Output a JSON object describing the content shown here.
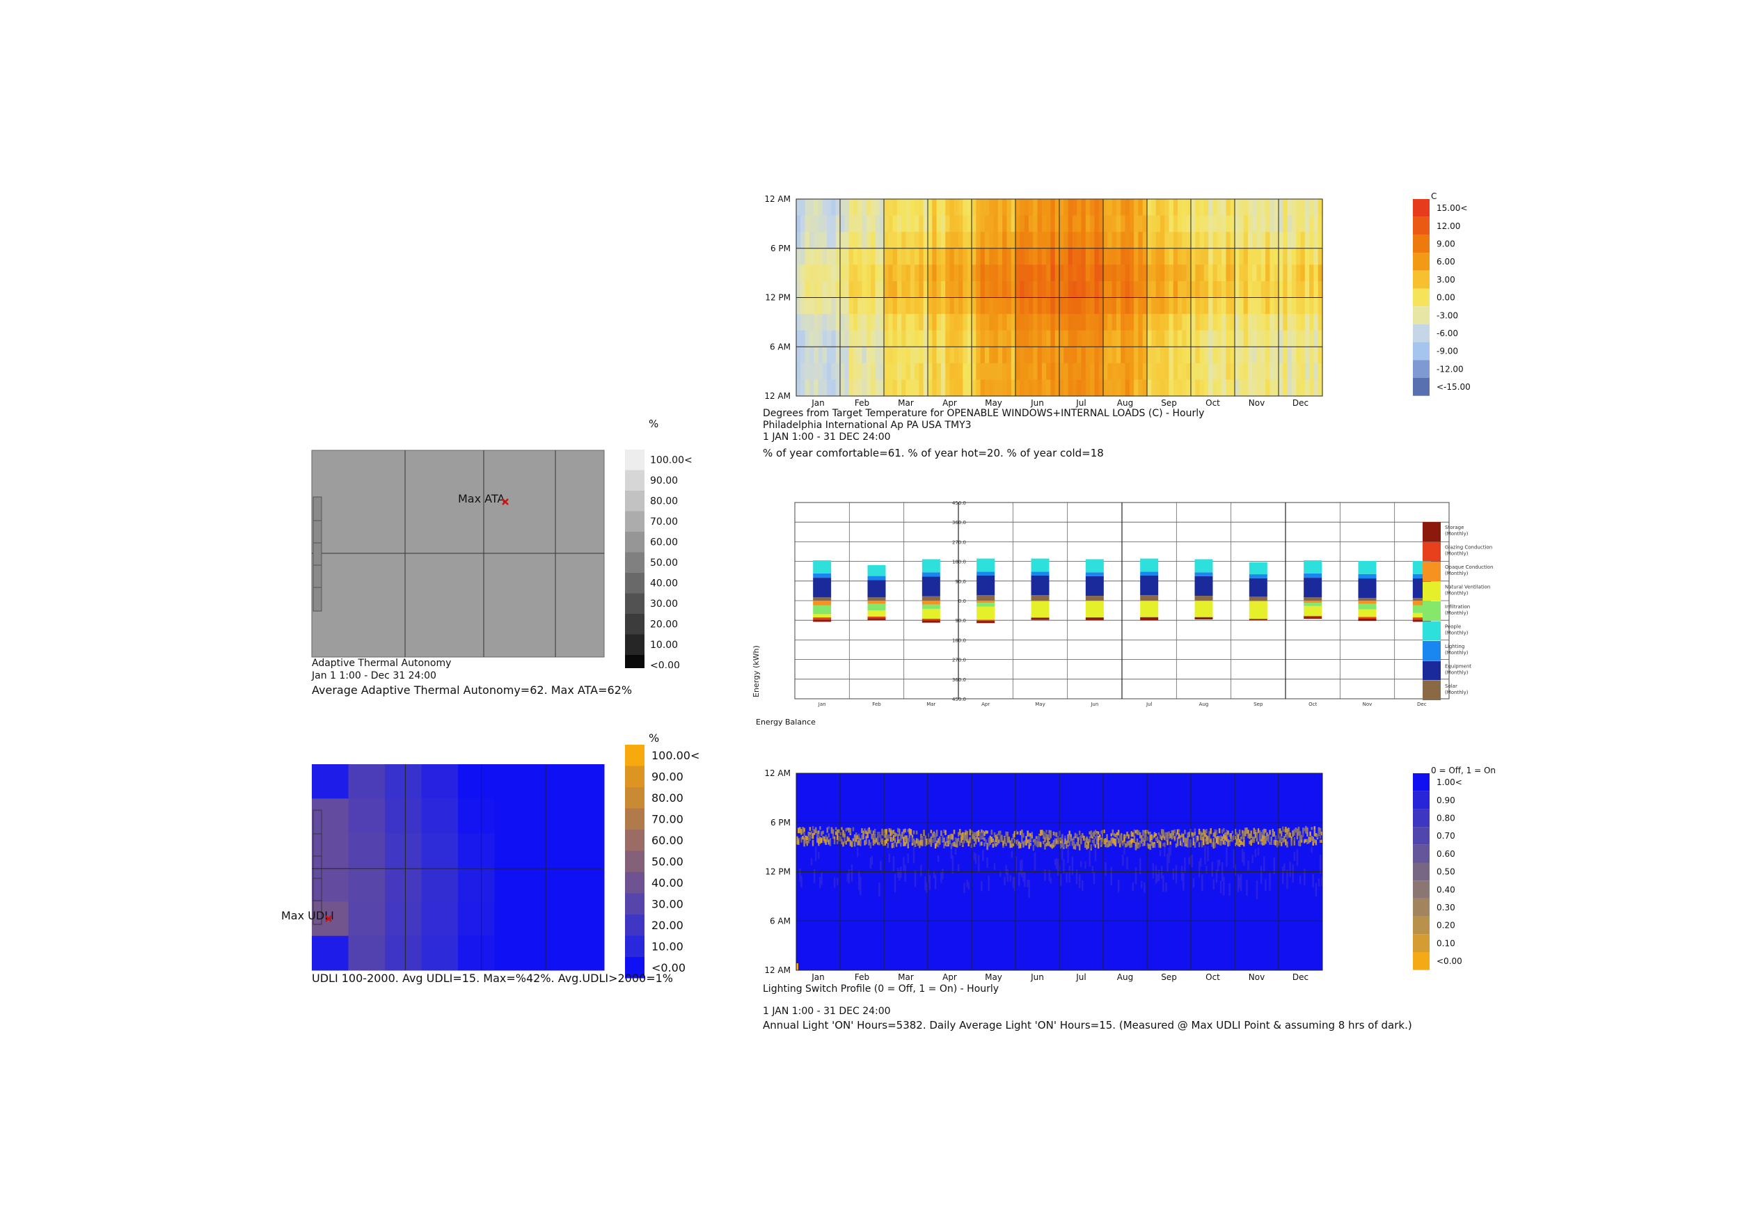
{
  "panels": {
    "ata": {
      "unit": "%",
      "legend": [
        "100.00<",
        "90.00",
        "80.00",
        "70.00",
        "60.00",
        "50.00",
        "40.00",
        "30.00",
        "20.00",
        "10.00",
        "<0.00"
      ],
      "legend_colors": [
        "#ededed",
        "#d6d6d6",
        "#c2c2c2",
        "#acacac",
        "#969696",
        "#808080",
        "#696969",
        "#525252",
        "#3c3c3c",
        "#262626",
        "#0a0a0a"
      ],
      "fill_color": "#9d9d9d",
      "marker_label": "Max ATA",
      "caption1": "Adaptive Thermal Autonomy",
      "caption2": "Jan 1 1:00 - Dec 31 24:00",
      "summary": "Average Adaptive Thermal Autonomy=62. Max ATA=62%"
    },
    "udli": {
      "unit": "%",
      "legend": [
        "100.00<",
        "90.00",
        "80.00",
        "70.00",
        "60.00",
        "50.00",
        "40.00",
        "30.00",
        "20.00",
        "10.00",
        "<0.00"
      ],
      "legend_colors": [
        "#f7aa0e",
        "#dc9520",
        "#c88a33",
        "#b07a4a",
        "#9a6c63",
        "#84607a",
        "#6e5292",
        "#5745ab",
        "#3f36c5",
        "#2a28dc",
        "#1010f5"
      ],
      "marker_label": "Max UDLI",
      "summary": "UDLI 100-2000. Avg UDLI=15. Max=%42%. Avg.UDLI>2000=1%"
    },
    "temp": {
      "unit": "C",
      "y_ticks": [
        "12 AM",
        "6 PM",
        "12 PM",
        "6 AM",
        "12 AM"
      ],
      "months": [
        "Jan",
        "Feb",
        "Mar",
        "Apr",
        "May",
        "Jun",
        "Jul",
        "Aug",
        "Sep",
        "Oct",
        "Nov",
        "Dec"
      ],
      "legend": [
        "15.00<",
        "12.00",
        "9.00",
        "6.00",
        "3.00",
        "0.00",
        "-3.00",
        "-6.00",
        "-9.00",
        "-12.00",
        "<-15.00"
      ],
      "legend_colors": [
        "#e63b1c",
        "#ea5a12",
        "#ee7a0e",
        "#f29a16",
        "#f6c02e",
        "#f5e35c",
        "#e8e6a4",
        "#c5d6e6",
        "#a5c4ee",
        "#7f9ad2",
        "#5870b0"
      ],
      "caption1": "Degrees from Target Temperature for OPENABLE WINDOWS+INTERNAL LOADS (C) - Hourly",
      "caption2": "Philadelphia International Ap PA USA TMY3",
      "caption3": "1 JAN 1:00 - 31 DEC 24:00",
      "summary": "% of year comfortable=61. % of year hot=20. % of year cold=18"
    },
    "energy": {
      "y_label": "Energy (kWh)",
      "y_ticks": [
        "450.0",
        "360.0",
        "270.0",
        "180.0",
        "90.0",
        "0.0",
        "90.0",
        "180.0",
        "270.0",
        "360.0",
        "450.0"
      ],
      "months": [
        "Jan",
        "Feb",
        "Mar",
        "Apr",
        "May",
        "Jun",
        "Jul",
        "Aug",
        "Sep",
        "Oct",
        "Nov",
        "Dec"
      ],
      "legend": [
        {
          "name": "Storage",
          "sub": "(Monthly)",
          "color": "#8b1a0c"
        },
        {
          "name": "Glazing Conduction",
          "sub": "(Monthly)",
          "color": "#e8401c"
        },
        {
          "name": "Opaque Conduction",
          "sub": "(Monthly)",
          "color": "#f59220"
        },
        {
          "name": "Natural Ventilation",
          "sub": "(Monthly)",
          "color": "#e6f02a"
        },
        {
          "name": "Infiltration",
          "sub": "(Monthly)",
          "color": "#86e86a"
        },
        {
          "name": "People",
          "sub": "(Monthly)",
          "color": "#2ee0dc"
        },
        {
          "name": "Lighting",
          "sub": "(Monthly)",
          "color": "#1a86f0"
        },
        {
          "name": "Equipment",
          "sub": "(Monthly)",
          "color": "#1a2a9a"
        },
        {
          "name": "Solar",
          "sub": "(Monthly)",
          "color": "#8a6a44"
        }
      ],
      "caption": "Energy Balance"
    },
    "light": {
      "unit": "0 = Off, 1 = On",
      "y_ticks": [
        "12 AM",
        "6 PM",
        "12 PM",
        "6 AM",
        "12 AM"
      ],
      "months": [
        "Jan",
        "Feb",
        "Mar",
        "Apr",
        "May",
        "Jun",
        "Jul",
        "Aug",
        "Sep",
        "Oct",
        "Nov",
        "Dec"
      ],
      "legend": [
        "1.00<",
        "0.90",
        "0.80",
        "0.70",
        "0.60",
        "0.50",
        "0.40",
        "0.30",
        "0.20",
        "0.10",
        "<0.00"
      ],
      "legend_colors": [
        "#1010f0",
        "#2824d8",
        "#3c36c2",
        "#5046ad",
        "#645698",
        "#786685",
        "#8c7672",
        "#a2855e",
        "#b8924a",
        "#d49c32",
        "#f4aa14"
      ],
      "caption1": "Lighting Switch Profile (0 = Off, 1 = On) - Hourly",
      "caption2": "1 JAN 1:00 - 31 DEC 24:00",
      "summary": "Annual Light 'ON' Hours=5382. Daily Average Light 'ON' Hours=15. (Measured @ Max UDLI Point & assuming 8 hrs of dark.)"
    }
  },
  "chart_data": [
    {
      "type": "heatmap",
      "title": "Adaptive Thermal Autonomy",
      "ylabel": "%",
      "summary_values": {
        "average_ata": 62,
        "max_ata": 62
      },
      "value_range": [
        0,
        100
      ]
    },
    {
      "type": "heatmap",
      "title": "UDLI 100-2000",
      "ylabel": "%",
      "summary_values": {
        "avg_udli": 15,
        "max_udli": 42,
        "avg_udli_over_2000": 1
      },
      "value_range": [
        0,
        100
      ]
    },
    {
      "type": "heatmap",
      "title": "Degrees from Target Temperature for OPENABLE WINDOWS+INTERNAL LOADS (C) - Hourly",
      "x": [
        "Jan",
        "Feb",
        "Mar",
        "Apr",
        "May",
        "Jun",
        "Jul",
        "Aug",
        "Sep",
        "Oct",
        "Nov",
        "Dec"
      ],
      "y": [
        "12 AM",
        "6 AM",
        "12 PM",
        "6 PM",
        "12 AM"
      ],
      "value_range": [
        -15,
        15
      ],
      "monthly_offset_c": [
        -4.5,
        -2.5,
        -0.5,
        1.5,
        4,
        6.5,
        8.5,
        7.5,
        2.5,
        0,
        -0.5,
        -1
      ],
      "summary_values": {
        "comfortable_pct": 61,
        "hot_pct": 20,
        "cold_pct": 18
      }
    },
    {
      "type": "bar",
      "title": "Energy Balance",
      "ylabel": "Energy (kWh)",
      "categories": [
        "Jan",
        "Feb",
        "Mar",
        "Apr",
        "May",
        "Jun",
        "Jul",
        "Aug",
        "Sep",
        "Oct",
        "Nov",
        "Dec"
      ],
      "ylim": [
        -450,
        450
      ],
      "series": [
        {
          "name": "Storage",
          "values": [
            -10,
            -8,
            -10,
            -10,
            -10,
            -12,
            -14,
            -10,
            -5,
            -8,
            -10,
            -10
          ]
        },
        {
          "name": "Glazing Conduction",
          "values": [
            -10,
            -8,
            -8,
            -5,
            0,
            0,
            0,
            0,
            0,
            -5,
            -8,
            -10
          ]
        },
        {
          "name": "Opaque Conduction",
          "values": [
            -22,
            -15,
            -18,
            -10,
            -3,
            -2,
            -1,
            -1,
            -4,
            -10,
            -15,
            -22
          ]
        },
        {
          "name": "Natural Ventilation",
          "values": [
            -15,
            -28,
            -45,
            -60,
            -75,
            -75,
            -75,
            -75,
            -80,
            -45,
            -35,
            -20
          ]
        },
        {
          "name": "Infiltration",
          "values": [
            -40,
            -30,
            -20,
            -18,
            0,
            0,
            0,
            0,
            0,
            -15,
            -25,
            -35
          ]
        },
        {
          "name": "People",
          "values": [
            60,
            50,
            60,
            60,
            60,
            60,
            60,
            60,
            55,
            60,
            60,
            60
          ]
        },
        {
          "name": "Lighting",
          "values": [
            20,
            18,
            20,
            18,
            18,
            18,
            18,
            18,
            18,
            20,
            20,
            20
          ]
        },
        {
          "name": "Equipment",
          "values": [
            90,
            80,
            90,
            90,
            90,
            90,
            90,
            90,
            85,
            90,
            90,
            90
          ]
        },
        {
          "name": "Solar",
          "values": [
            15,
            15,
            20,
            25,
            25,
            22,
            25,
            22,
            18,
            15,
            12,
            12
          ]
        }
      ]
    },
    {
      "type": "heatmap",
      "title": "Lighting Switch Profile (0 = Off, 1 = On) - Hourly",
      "x": [
        "Jan",
        "Feb",
        "Mar",
        "Apr",
        "May",
        "Jun",
        "Jul",
        "Aug",
        "Sep",
        "Oct",
        "Nov",
        "Dec"
      ],
      "y": [
        "12 AM",
        "6 AM",
        "12 PM",
        "6 PM",
        "12 AM"
      ],
      "value_range": [
        0,
        1
      ],
      "summary_values": {
        "annual_on_hours": 5382,
        "daily_average_on_hours": 15
      }
    }
  ]
}
